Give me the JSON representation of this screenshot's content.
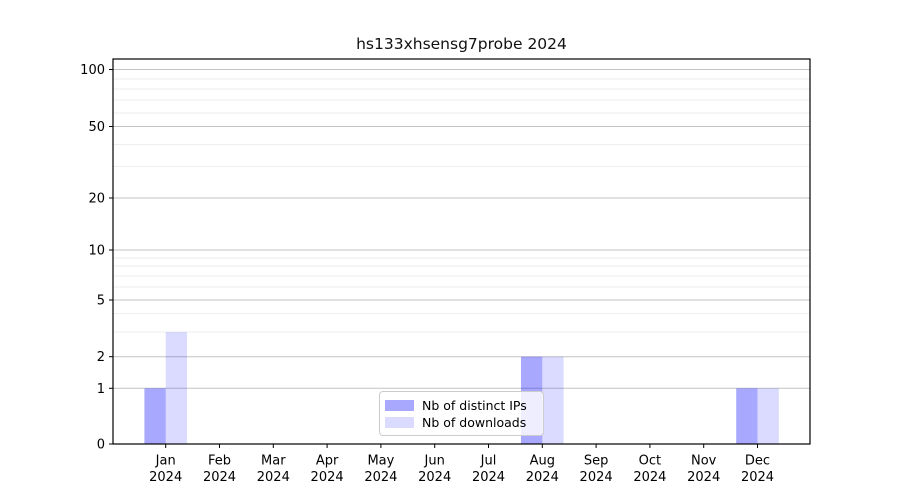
{
  "chart_data": {
    "type": "bar",
    "title": "hs133xhsensg7probe 2024",
    "categories": [
      "Jan",
      "Feb",
      "Mar",
      "Apr",
      "May",
      "Jun",
      "Jul",
      "Aug",
      "Sep",
      "Oct",
      "Nov",
      "Dec"
    ],
    "category_year_line": "2024",
    "series": [
      {
        "name": "Nb of distinct IPs",
        "color": "#0000ff",
        "alpha": 0.34,
        "values": [
          1,
          0,
          0,
          0,
          0,
          0,
          0,
          2,
          0,
          0,
          0,
          1
        ]
      },
      {
        "name": "Nb of downloads",
        "color": "#0000ff",
        "alpha": 0.14,
        "values": [
          3,
          0,
          0,
          0,
          0,
          0,
          0,
          2,
          0,
          0,
          0,
          1
        ]
      }
    ],
    "xlabel": "",
    "ylabel": "",
    "yscale": "symlog",
    "yticks": [
      0,
      1,
      2,
      5,
      10,
      20,
      50,
      100
    ],
    "yminor_gridlines": [
      3,
      4,
      6,
      7,
      8,
      9,
      30,
      40,
      60,
      70,
      80,
      90
    ],
    "ylim": [
      0,
      115
    ],
    "grid": "horizontal major and faint minor gridlines",
    "legend_position": "lower center",
    "colors": {
      "bar_distinct_ips_rendered": "#aaaaf7",
      "bar_downloads_rendered": "#dcdcfb",
      "major_grid": "#c3c3c3",
      "minor_grid": "#e9e9e9",
      "spine": "#000000"
    }
  },
  "legend": {
    "items": [
      {
        "label": "Nb of distinct IPs"
      },
      {
        "label": "Nb of downloads"
      }
    ]
  }
}
